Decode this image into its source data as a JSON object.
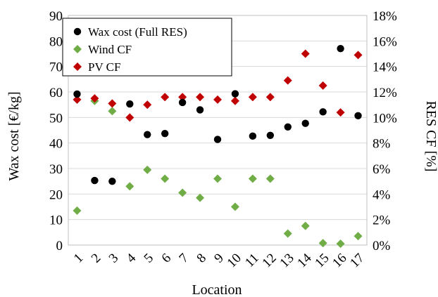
{
  "chart_data": {
    "type": "scatter",
    "categories": [
      "1",
      "2",
      "3",
      "4",
      "5",
      "6",
      "7",
      "8",
      "9",
      "10",
      "11",
      "12",
      "13",
      "14",
      "15",
      "16",
      "17"
    ],
    "xlabel": "Location",
    "ylabel": "Wax cost [€/kg]",
    "y2label": "RES CF [%]",
    "ylim": [
      0,
      90
    ],
    "yticks": [
      "0",
      "10",
      "20",
      "30",
      "40",
      "50",
      "60",
      "70",
      "80",
      "90"
    ],
    "y2lim": [
      0,
      18
    ],
    "y2ticks": [
      "0%",
      "2%",
      "4%",
      "6%",
      "8%",
      "10%",
      "12%",
      "14%",
      "16%",
      "18%"
    ],
    "grid": "horizontal",
    "legend_position": "top-left",
    "series": [
      {
        "name": "Wax cost (Full RES)",
        "axis": "left",
        "marker": "circle",
        "color": "#000000",
        "values": [
          59.2,
          25.3,
          25.0,
          55.3,
          43.3,
          43.7,
          55.9,
          53.0,
          41.4,
          59.3,
          42.7,
          43.0,
          46.3,
          47.7,
          52.2,
          77.0,
          50.7
        ]
      },
      {
        "name": "Wind CF",
        "axis": "right",
        "marker": "diamond",
        "color": "#70ad47",
        "values": [
          2.7,
          11.3,
          10.5,
          4.6,
          5.9,
          5.2,
          4.1,
          3.7,
          5.2,
          3.0,
          5.2,
          5.2,
          0.9,
          1.5,
          0.15,
          0.1,
          0.7
        ]
      },
      {
        "name": "PV CF",
        "axis": "right",
        "marker": "diamond",
        "color": "#c00000",
        "values": [
          11.4,
          11.5,
          11.1,
          10.0,
          11.0,
          11.6,
          11.6,
          11.6,
          11.4,
          11.3,
          11.6,
          11.6,
          12.9,
          15.0,
          12.5,
          10.4,
          14.9
        ]
      }
    ]
  }
}
